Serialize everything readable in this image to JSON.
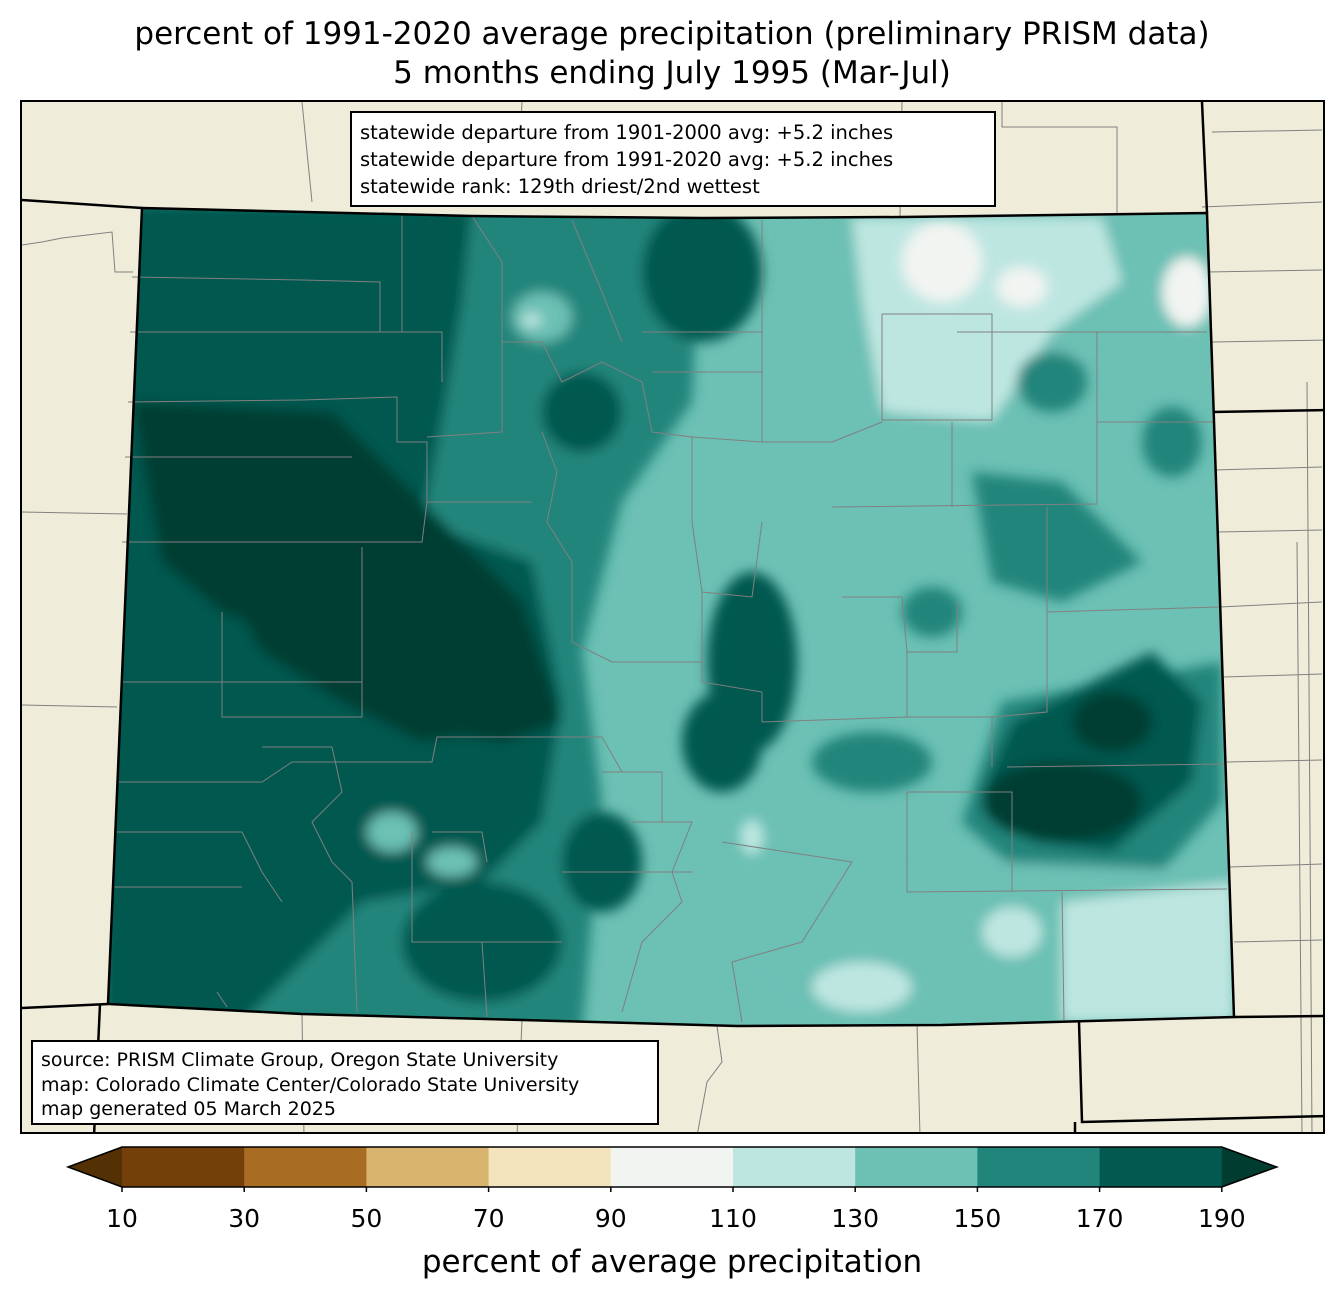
{
  "title": {
    "line1": "percent of 1991-2020 average precipitation (preliminary PRISM data)",
    "line2": "5 months ending July 1995 (Mar-Jul)"
  },
  "stats": {
    "line1": "statewide departure from 1901-2000 avg: +5.2 inches",
    "line2": "statewide departure from 1991-2020 avg: +5.2 inches",
    "line3": "statewide rank: 129th driest/2nd wettest"
  },
  "source": {
    "line1": "source: PRISM Climate Group, Oregon State University",
    "line2": "map: Colorado Climate Center/Colorado State University",
    "line3": "map generated 05 March 2025"
  },
  "colorbar": {
    "label": "percent of average precipitation",
    "ticks": [
      "10",
      "30",
      "50",
      "70",
      "90",
      "110",
      "130",
      "150",
      "170",
      "190"
    ],
    "under_color": "#543005",
    "over_color": "#003c30",
    "bins": [
      "#8c510a",
      "#bf812d",
      "#dfc27d",
      "#f6e8c3",
      "#f5f5f5",
      "#c7eae5",
      "#80cdc1",
      "#35978f",
      "#01665e"
    ],
    "colors_rendered": [
      "#734009",
      "#a86d23",
      "#d8b46f",
      "#f3e4be",
      "#f2f4f2",
      "#bee6e1",
      "#6cc0b4",
      "#22857c",
      "#02594f"
    ]
  },
  "map": {
    "background": "#efedda",
    "county_line_color": "#808080",
    "state_line_color": "#000000"
  }
}
